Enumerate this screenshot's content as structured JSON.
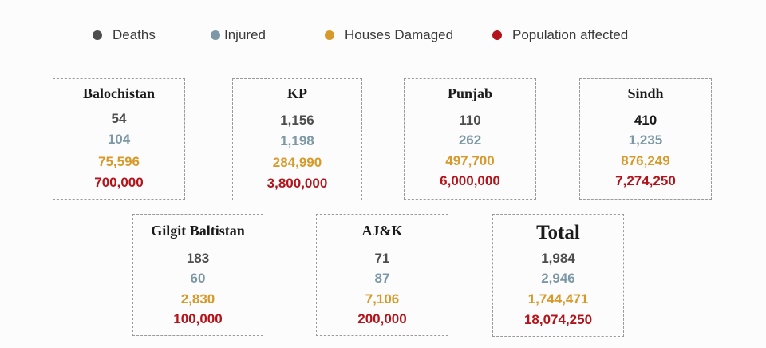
{
  "legend": [
    {
      "label": "Deaths",
      "color": "#4d4d4d"
    },
    {
      "label": "Injured",
      "color": "#7c98a6"
    },
    {
      "label": "Houses Damaged",
      "color": "#d79a2a"
    },
    {
      "label": "Population affected",
      "color": "#b3141b"
    }
  ],
  "regions": [
    {
      "name": "Balochistan",
      "deaths": "54",
      "injured": "104",
      "houses": "75,596",
      "population": "700,000"
    },
    {
      "name": "KP",
      "deaths": "1,156",
      "injured": "1,198",
      "houses": "284,990",
      "population": "3,800,000"
    },
    {
      "name": "Punjab",
      "deaths": "110",
      "injured": "262",
      "houses": "497,700",
      "population": "6,000,000"
    },
    {
      "name": "Sindh",
      "deaths": "410",
      "injured": "1,235",
      "houses": "876,249",
      "population": "7,274,250"
    },
    {
      "name": "Gilgit Baltistan",
      "deaths": "183",
      "injured": "60",
      "houses": "2,830",
      "population": "100,000"
    },
    {
      "name": "AJ&K",
      "deaths": "71",
      "injured": "87",
      "houses": "7,106",
      "population": "200,000"
    }
  ],
  "total": {
    "name": "Total",
    "deaths": "1,984",
    "injured": "2,946",
    "houses": "1,744,471",
    "population": "18,074,250"
  }
}
